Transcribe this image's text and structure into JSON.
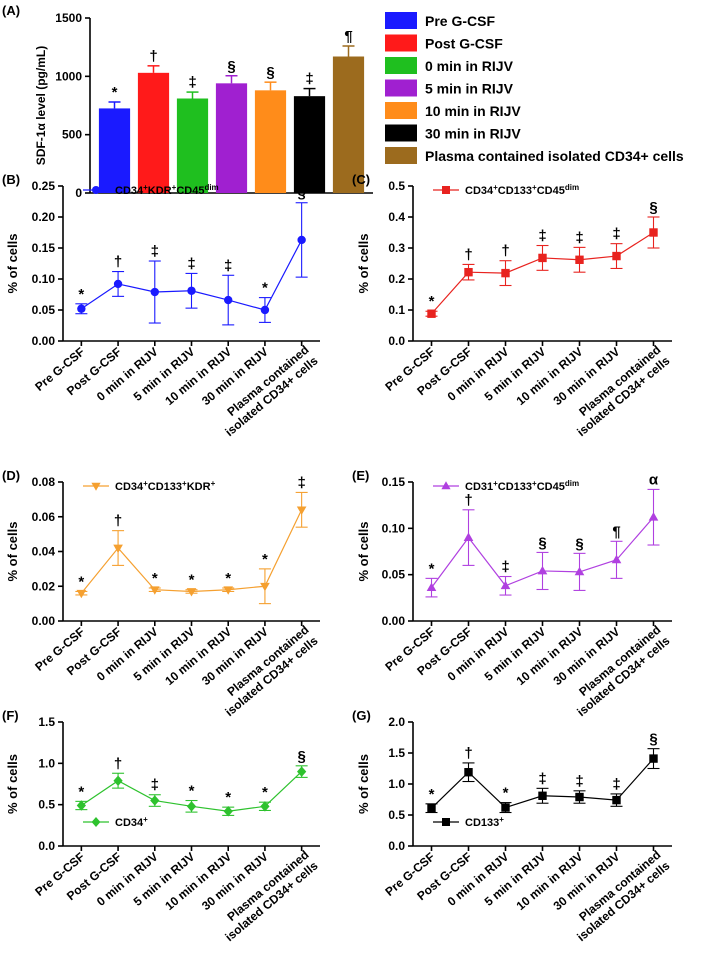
{
  "chart_data": [
    {
      "panel": "(A)",
      "type": "bar",
      "ylabel": "SDF-1α level (pg/mL)",
      "ylim": [
        0,
        1500
      ],
      "yticks": [
        "0",
        "500",
        "1000",
        "1500"
      ],
      "categories": [
        "Pre G-CSF",
        "Post G-CSF",
        "0 min in RIJV",
        "5 min in RIJV",
        "10 min in RIJV",
        "30 min in RIJV",
        "Plasma contained isolated CD34+ cells"
      ],
      "values": [
        725,
        1030,
        810,
        940,
        880,
        830,
        1170
      ],
      "errors": [
        55,
        60,
        55,
        65,
        70,
        65,
        90
      ],
      "sig": [
        "*",
        "†",
        "‡",
        "§",
        "§",
        "‡",
        "¶"
      ],
      "colors": [
        "#1a1aff",
        "#ff1a1a",
        "#1fbf1f",
        "#a020d0",
        "#ff8c1a",
        "#000000",
        "#9c6b1e"
      ],
      "legend_placement": "right"
    },
    {
      "panel": "(B)",
      "type": "line",
      "legend": {
        "base": "CD34",
        "p1": "+",
        "mid": "KDR",
        "p2": "+",
        "tail": "CD45",
        "p3": "dim"
      },
      "color": "#1a1aff",
      "marker": "circle",
      "ylabel": "% of cells",
      "ylim": [
        0,
        0.25
      ],
      "yticks": [
        "0.00",
        "0.05",
        "0.10",
        "0.15",
        "0.20",
        "0.25"
      ],
      "values": [
        0.052,
        0.092,
        0.079,
        0.081,
        0.066,
        0.05,
        0.163
      ],
      "errors": [
        0.008,
        0.02,
        0.05,
        0.028,
        0.04,
        0.02,
        0.06
      ],
      "sig": [
        "*",
        "†",
        "‡",
        "‡",
        "‡",
        "*",
        "§"
      ]
    },
    {
      "panel": "(C)",
      "type": "line",
      "legend": {
        "base": "CD34",
        "p1": "+",
        "mid": "CD133",
        "p2": "+",
        "tail": "CD45",
        "p3": "dim"
      },
      "color": "#e8231f",
      "marker": "square",
      "ylabel": "% of cells",
      "ylim": [
        0,
        0.5
      ],
      "yticks": [
        "0.0",
        "0.1",
        "0.2",
        "0.3",
        "0.4",
        "0.5"
      ],
      "values": [
        0.088,
        0.222,
        0.219,
        0.268,
        0.262,
        0.274,
        0.35
      ],
      "errors": [
        0.008,
        0.025,
        0.04,
        0.04,
        0.04,
        0.04,
        0.05
      ],
      "sig": [
        "*",
        "†",
        "†",
        "‡",
        "‡",
        "‡",
        "§"
      ]
    },
    {
      "panel": "(D)",
      "type": "line",
      "legend": {
        "base": "CD34",
        "p1": "+",
        "mid": "CD133",
        "p2": "+",
        "tail": "KDR",
        "p3": "+"
      },
      "color": "#f5a030",
      "marker": "triangle-down",
      "ylabel": "% of cells",
      "ylim": [
        0,
        0.08
      ],
      "yticks": [
        "0.00",
        "0.02",
        "0.04",
        "0.06",
        "0.08"
      ],
      "values": [
        0.016,
        0.042,
        0.018,
        0.017,
        0.018,
        0.02,
        0.064
      ],
      "errors": [
        0.001,
        0.01,
        0.001,
        0.001,
        0.001,
        0.01,
        0.01
      ],
      "sig": [
        "*",
        "†",
        "*",
        "*",
        "*",
        "*",
        "‡"
      ]
    },
    {
      "panel": "(E)",
      "type": "line",
      "legend": {
        "base": "CD31",
        "p1": "+",
        "mid": "CD133",
        "p2": "+",
        "tail": "CD45",
        "p3": "dim"
      },
      "color": "#b040e0",
      "marker": "triangle",
      "ylabel": "% of cells",
      "ylim": [
        0,
        0.15
      ],
      "yticks": [
        "0.00",
        "0.05",
        "0.10",
        "0.15"
      ],
      "values": [
        0.036,
        0.09,
        0.038,
        0.054,
        0.053,
        0.066,
        0.112
      ],
      "errors": [
        0.01,
        0.03,
        0.01,
        0.02,
        0.02,
        0.02,
        0.03
      ],
      "sig": [
        "*",
        "†",
        "‡",
        "§",
        "§",
        "¶",
        "α"
      ]
    },
    {
      "panel": "(F)",
      "type": "line",
      "legend": {
        "base": "CD34",
        "p1": "+",
        "mid": "",
        "p2": "",
        "tail": "",
        "p3": ""
      },
      "color": "#2ec22e",
      "marker": "diamond",
      "ylabel": "% of cells",
      "ylim": [
        0,
        1.5
      ],
      "yticks": [
        "0.0",
        "0.5",
        "1.0",
        "1.5"
      ],
      "values": [
        0.49,
        0.79,
        0.55,
        0.48,
        0.42,
        0.48,
        0.9
      ],
      "errors": [
        0.05,
        0.09,
        0.07,
        0.07,
        0.05,
        0.05,
        0.07
      ],
      "sig": [
        "*",
        "†",
        "‡",
        "*",
        "*",
        "*",
        "§"
      ]
    },
    {
      "panel": "(G)",
      "type": "line",
      "legend": {
        "base": "CD133",
        "p1": "+",
        "mid": "",
        "p2": "",
        "tail": "",
        "p3": ""
      },
      "color": "#000000",
      "marker": "square",
      "ylabel": "% of cells",
      "ylim": [
        0,
        2.0
      ],
      "yticks": [
        "0.0",
        "0.5",
        "1.0",
        "1.5",
        "2.0"
      ],
      "values": [
        0.61,
        1.19,
        0.62,
        0.81,
        0.79,
        0.74,
        1.41
      ],
      "errors": [
        0.07,
        0.15,
        0.08,
        0.12,
        0.1,
        0.1,
        0.16
      ],
      "sig": [
        "*",
        "†",
        "*",
        "‡",
        "‡",
        "‡",
        "§"
      ]
    }
  ],
  "x_tick_labels": [
    "Pre G-CSF",
    "Post G-CSF",
    "0 min in RIJV",
    "5 min in RIJV",
    "10 min in RIJV",
    "30 min in RIJV",
    "Plasma contained",
    "isolated CD34+ cells"
  ]
}
